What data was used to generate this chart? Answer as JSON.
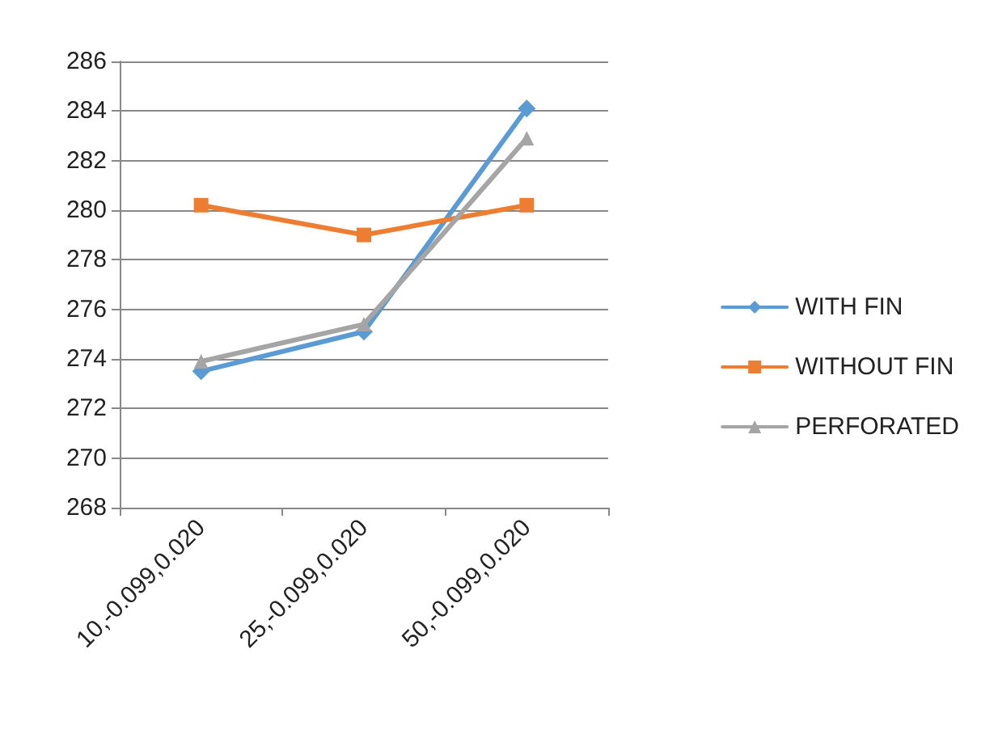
{
  "chart_data": {
    "type": "line",
    "categories": [
      "10,-0.099,0.020",
      "25,-0.099,0.020",
      "50,-0.099,0.020"
    ],
    "series": [
      {
        "name": "WITH FIN",
        "color": "#5b9bd5",
        "marker": "diamond",
        "values": [
          273.5,
          275.1,
          284.1
        ]
      },
      {
        "name": "WITHOUT FIN",
        "color": "#ed7d31",
        "marker": "square",
        "values": [
          280.2,
          279.0,
          280.2
        ]
      },
      {
        "name": "PERFORATED",
        "color": "#a5a5a5",
        "marker": "triangle",
        "values": [
          273.9,
          275.4,
          282.9
        ]
      }
    ],
    "ylim": [
      268,
      286
    ],
    "yticks": [
      268,
      270,
      272,
      274,
      276,
      278,
      280,
      282,
      284,
      286
    ],
    "grid": "y",
    "legend": "right",
    "line_style": "solid"
  }
}
